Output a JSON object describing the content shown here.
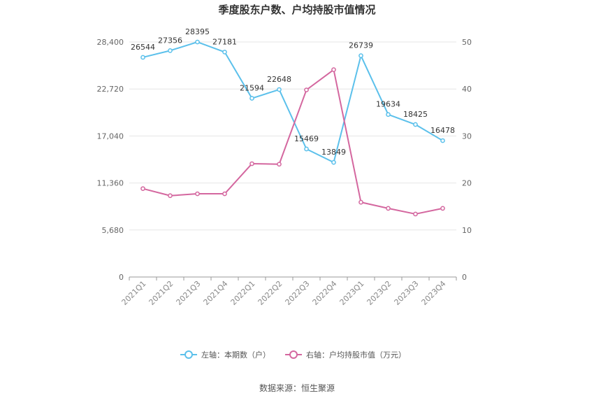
{
  "chart_data": {
    "type": "line",
    "title": "季度股东户数、户均持股市值情况",
    "categories": [
      "2021Q1",
      "2021Q2",
      "2021Q3",
      "2021Q4",
      "2022Q1",
      "2022Q2",
      "2022Q3",
      "2022Q4",
      "2023Q1",
      "2023Q2",
      "2023Q3",
      "2023Q4"
    ],
    "y_left": {
      "ticks": [
        "0",
        "5,680",
        "11,360",
        "17,040",
        "22,720",
        "28,400"
      ],
      "ylim": [
        0,
        28400
      ]
    },
    "y_right": {
      "ticks": [
        "0",
        "10",
        "20",
        "30",
        "40",
        "50"
      ],
      "ylim": [
        0,
        50
      ]
    },
    "grid": true,
    "legend_position": "bottom",
    "series": [
      {
        "name": "左轴：本期数（户）",
        "axis": "left",
        "color": "#5bc0eb",
        "values": [
          26544,
          27356,
          28395,
          27181,
          21594,
          22648,
          15469,
          13849,
          26739,
          19634,
          18425,
          16478
        ],
        "labels": [
          "26544",
          "27356",
          "28395",
          "27181",
          "21594",
          "22648",
          "15469",
          "13849",
          "26739",
          "19634",
          "18425",
          "16478"
        ]
      },
      {
        "name": "右轴：户均持股市值（万元）",
        "axis": "right",
        "color": "#d4679f",
        "values": [
          18.8,
          17.3,
          17.7,
          17.7,
          24.1,
          24.0,
          39.8,
          44.1,
          15.9,
          14.6,
          13.4,
          14.6
        ]
      }
    ],
    "source": "数据来源：恒生聚源"
  }
}
